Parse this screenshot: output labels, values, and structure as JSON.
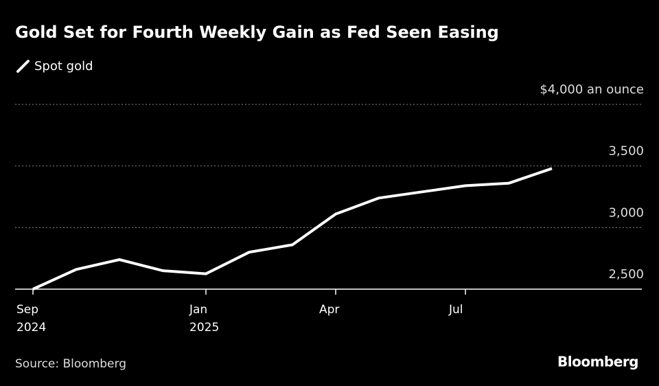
{
  "chart_data": {
    "type": "line",
    "title": "Gold Set for Fourth Weekly Gain as Fed Seen Easing",
    "x": [
      "2024-09",
      "2024-10",
      "2024-11",
      "2024-12",
      "2025-01",
      "2025-02",
      "2025-03",
      "2025-04",
      "2025-05",
      "2025-06",
      "2025-07",
      "2025-08",
      "2025-09"
    ],
    "series": [
      {
        "name": "Spot gold",
        "color": "#ffffff",
        "values": [
          2500,
          2660,
          2740,
          2650,
          2625,
          2800,
          2860,
          3110,
          3240,
          3290,
          3340,
          3360,
          3480
        ]
      }
    ],
    "xlim": [
      "2024-09",
      "2025-11"
    ],
    "xticks": [
      {
        "value": "2024-09",
        "label": "Sep 2024"
      },
      {
        "value": "2025-01",
        "label": "Jan 2025"
      },
      {
        "value": "2025-04",
        "label": "Apr"
      },
      {
        "value": "2025-07",
        "label": "Jul"
      }
    ],
    "ylim": [
      2500,
      4000
    ],
    "yticks": [
      {
        "value": 2500,
        "label": "2,500"
      },
      {
        "value": 3000,
        "label": "3,000"
      },
      {
        "value": 3500,
        "label": "3,500"
      },
      {
        "value": 4000,
        "label": "$4,000 an ounce"
      }
    ],
    "grid": true,
    "source": "Source: Bloomberg",
    "brand": "Bloomberg"
  }
}
